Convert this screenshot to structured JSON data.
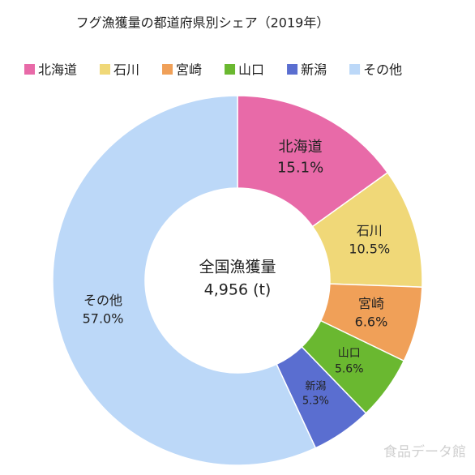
{
  "chart_data": {
    "type": "pie",
    "title": "フグ漁獲量の都道府県別シェア（2019年）",
    "categories": [
      "北海道",
      "石川",
      "宮崎",
      "山口",
      "新潟",
      "その他"
    ],
    "values": [
      15.1,
      10.5,
      6.6,
      5.6,
      5.3,
      57.0
    ],
    "value_labels": [
      "15.1%",
      "10.5%",
      "6.6%",
      "5.6%",
      "5.3%",
      "57.0%"
    ],
    "colors": [
      "#e86aa8",
      "#f0d878",
      "#f0a058",
      "#6ab830",
      "#5a6ed0",
      "#bcd8f8"
    ],
    "center_label": "全国漁獲量",
    "center_value": "4,956 (t)",
    "legend": "top"
  },
  "watermark": "食品データ館"
}
